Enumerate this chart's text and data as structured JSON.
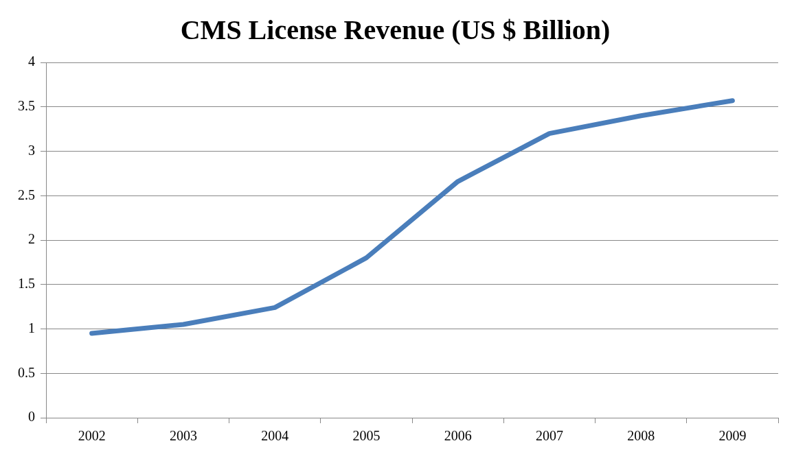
{
  "chart_data": {
    "type": "line",
    "title": "CMS License Revenue (US $ Billion)",
    "categories": [
      "2002",
      "2003",
      "2004",
      "2005",
      "2006",
      "2007",
      "2008",
      "2009"
    ],
    "series": [
      {
        "color": "#4a7ebb",
        "values": [
          0.95,
          1.05,
          1.24,
          1.8,
          2.66,
          3.2,
          3.4,
          3.57
        ]
      }
    ],
    "ylim": [
      0,
      4
    ],
    "yticks": [
      0,
      {
        "value": 0.5,
        "label": "0.5"
      },
      1,
      {
        "value": 1.5,
        "label": "1.5"
      },
      2,
      {
        "value": 2.5,
        "label": "2.5"
      },
      3,
      {
        "value": 3.5,
        "label": "3.5"
      },
      4
    ],
    "grid": "y",
    "legend": false,
    "marker": "none",
    "line_style": "solid"
  }
}
